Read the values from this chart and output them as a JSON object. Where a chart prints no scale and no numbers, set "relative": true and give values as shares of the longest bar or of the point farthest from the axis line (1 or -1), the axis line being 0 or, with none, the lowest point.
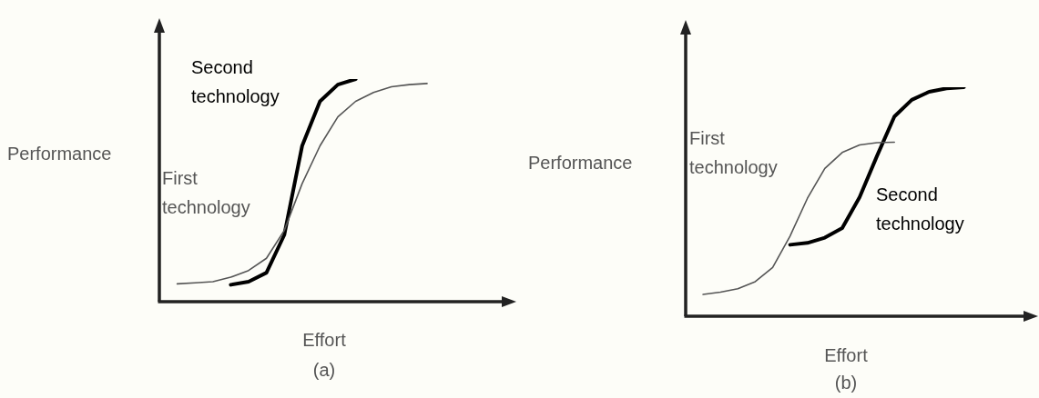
{
  "chart_data": [
    {
      "type": "line",
      "relative": true,
      "xlabel": "Effort",
      "ylabel": "Performance",
      "annotations": [
        "(a)"
      ],
      "legend": false,
      "marker": "none",
      "line_style": "solid",
      "categories": [
        null,
        null,
        null,
        null,
        null,
        null,
        null,
        null,
        null,
        null,
        null,
        null,
        null,
        null,
        null,
        null,
        null,
        null,
        null,
        null,
        null
      ],
      "series": [
        {
          "name": "First technology",
          "color": "#555555",
          "values": [
            null,
            0.08,
            0.085,
            0.09,
            0.11,
            0.14,
            0.195,
            0.32,
            0.53,
            0.7,
            0.83,
            0.9,
            0.94,
            0.965,
            0.975,
            0.98,
            null,
            null,
            null,
            null,
            null
          ]
        },
        {
          "name": "Second technology",
          "color": "#000000",
          "values": [
            null,
            null,
            null,
            null,
            0.076,
            0.09,
            0.13,
            0.3,
            0.7,
            0.9,
            0.975,
            1.0,
            null,
            null,
            null,
            null,
            null,
            null,
            null,
            null,
            null
          ]
        }
      ]
    },
    {
      "type": "line",
      "relative": true,
      "xlabel": "Effort",
      "ylabel": "Performance",
      "annotations": [
        "(b)"
      ],
      "legend": false,
      "marker": "none",
      "line_style": "solid",
      "categories": [
        null,
        null,
        null,
        null,
        null,
        null,
        null,
        null,
        null,
        null,
        null,
        null,
        null,
        null,
        null,
        null,
        null,
        null,
        null,
        null,
        null
      ],
      "series": [
        {
          "name": "First technology",
          "color": "#555555",
          "values": [
            null,
            0.095,
            0.105,
            0.12,
            0.151,
            0.213,
            0.35,
            0.515,
            0.645,
            0.715,
            0.748,
            0.758,
            0.76,
            null,
            null,
            null,
            null,
            null,
            null,
            null,
            null
          ]
        },
        {
          "name": "Second technology",
          "color": "#000000",
          "values": [
            null,
            null,
            null,
            null,
            null,
            null,
            0.312,
            0.32,
            0.343,
            0.385,
            0.52,
            0.7,
            0.872,
            0.945,
            0.98,
            0.995,
            1.0,
            null,
            null,
            null,
            null
          ]
        }
      ]
    }
  ]
}
